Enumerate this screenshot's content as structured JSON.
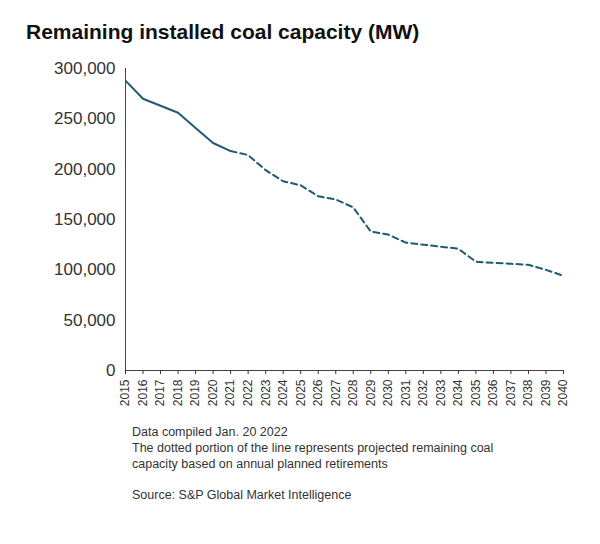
{
  "chart_data": {
    "type": "line",
    "title": "Remaining installed coal capacity (MW)",
    "x": [
      2015,
      2016,
      2017,
      2018,
      2019,
      2020,
      2021,
      2022,
      2023,
      2024,
      2025,
      2026,
      2027,
      2028,
      2029,
      2030,
      2031,
      2032,
      2033,
      2034,
      2035,
      2036,
      2037,
      2038,
      2039,
      2040
    ],
    "series": [
      {
        "color": "#1f5b75",
        "line_style": "solid",
        "values": [
          288000,
          270000,
          263000,
          256000,
          241000,
          226000,
          218000,
          null,
          null,
          null,
          null,
          null,
          null,
          null,
          null,
          null,
          null,
          null,
          null,
          null,
          null,
          null,
          null,
          null,
          null,
          null
        ]
      },
      {
        "color": "#1f5b75",
        "line_style": "dashed",
        "values": [
          null,
          null,
          null,
          null,
          null,
          null,
          218000,
          214000,
          199000,
          188000,
          184000,
          173000,
          170000,
          162000,
          138000,
          135000,
          127000,
          125000,
          123000,
          121000,
          108000,
          107000,
          106000,
          105000,
          100000,
          94000
        ]
      }
    ],
    "xlim": [
      2015,
      2040
    ],
    "xticks": [
      2015,
      2016,
      2017,
      2018,
      2019,
      2020,
      2021,
      2022,
      2023,
      2024,
      2025,
      2026,
      2027,
      2028,
      2029,
      2030,
      2031,
      2032,
      2033,
      2034,
      2035,
      2036,
      2037,
      2038,
      2039,
      2040
    ],
    "ylim": [
      0,
      300000
    ],
    "yticks": [
      0,
      {
        "value": 50000,
        "label": "50,000"
      },
      {
        "value": 100000,
        "label": "100,000"
      },
      {
        "value": 150000,
        "label": "150,000"
      },
      {
        "value": 200000,
        "label": "200,000"
      },
      {
        "value": 250000,
        "label": "250,000"
      },
      {
        "value": 300000,
        "label": "300,000"
      }
    ],
    "grid": false,
    "notes": [
      "Data compiled Jan. 20 2022",
      "The dotted portion of the line represents projected remaining coal capacity based on annual planned retirements"
    ],
    "source": "Source: S&P Global Market Intelligence"
  }
}
